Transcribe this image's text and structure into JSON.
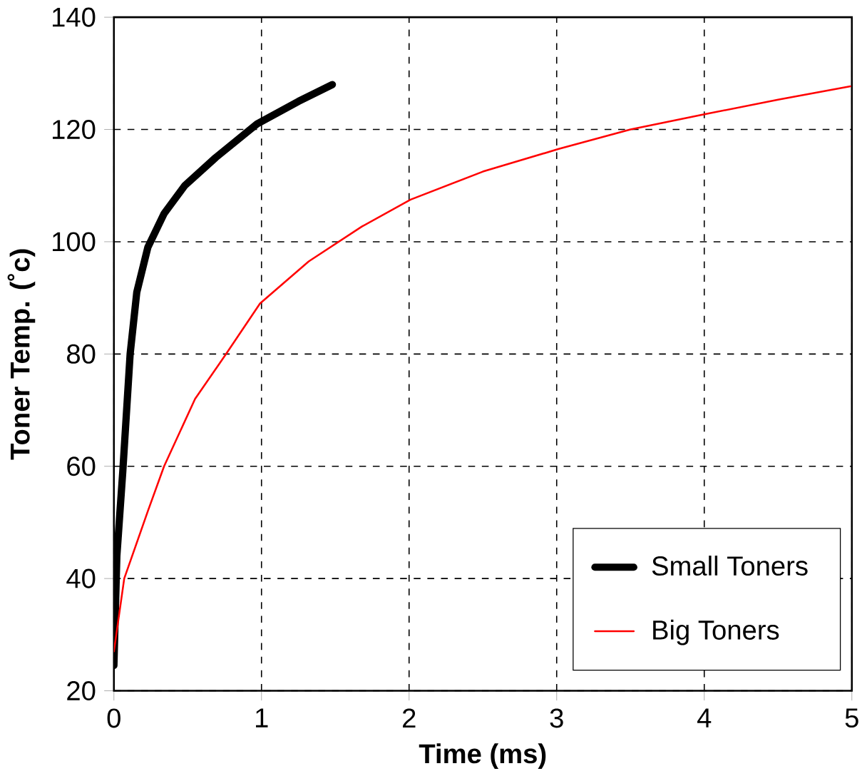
{
  "chart_data": {
    "type": "line",
    "xlabel": "Time (ms)",
    "ylabel": "Toner Temp. (˚c)",
    "xlim": [
      0,
      5
    ],
    "ylim": [
      20,
      140
    ],
    "xticks": [
      0,
      1,
      2,
      3,
      4,
      5
    ],
    "yticks": [
      20,
      40,
      60,
      80,
      100,
      120,
      140
    ],
    "grid": true,
    "legend": "bottom right",
    "marker": "none",
    "line_style": "solid",
    "series": [
      {
        "name": "Small Toners",
        "color": "#000000",
        "x": [
          0,
          0.02,
          0.06,
          0.11,
          0.155,
          0.23,
          0.34,
          0.48,
          0.69,
          0.97,
          1.25,
          1.48
        ],
        "values": [
          24.5,
          44,
          59,
          80,
          91,
          99,
          105,
          110,
          115,
          121,
          125,
          128
        ]
      },
      {
        "name": "Big Toners",
        "color": "#ff0000",
        "x": [
          0,
          0.07,
          0.23,
          0.34,
          0.55,
          0.76,
          0.99,
          1.32,
          1.68,
          2.01,
          2.5,
          3.01,
          3.5,
          4.0,
          4.5,
          4.99
        ],
        "values": [
          27,
          40,
          52,
          60,
          72,
          80,
          89,
          96.5,
          102.7,
          107.5,
          112.5,
          116.5,
          120,
          122.7,
          125.3,
          127.7
        ]
      }
    ]
  }
}
